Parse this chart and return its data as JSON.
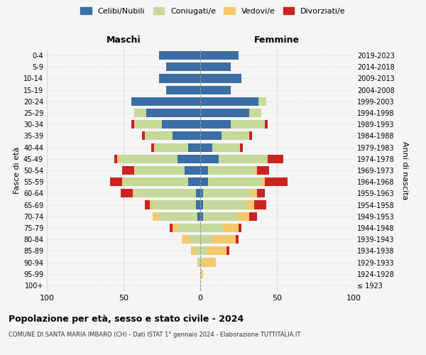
{
  "age_groups": [
    "100+",
    "95-99",
    "90-94",
    "85-89",
    "80-84",
    "75-79",
    "70-74",
    "65-69",
    "60-64",
    "55-59",
    "50-54",
    "45-49",
    "40-44",
    "35-39",
    "30-34",
    "25-29",
    "20-24",
    "15-19",
    "10-14",
    "5-9",
    "0-4"
  ],
  "birth_years": [
    "≤ 1923",
    "1924-1928",
    "1929-1933",
    "1934-1938",
    "1939-1943",
    "1944-1948",
    "1949-1953",
    "1954-1958",
    "1959-1963",
    "1964-1968",
    "1969-1973",
    "1974-1978",
    "1979-1983",
    "1984-1988",
    "1989-1993",
    "1994-1998",
    "1999-2003",
    "2004-2008",
    "2009-2013",
    "2014-2018",
    "2019-2023"
  ],
  "maschi": {
    "celibi": [
      0,
      0,
      0,
      0,
      0,
      0,
      2,
      3,
      3,
      8,
      10,
      15,
      8,
      18,
      25,
      35,
      45,
      22,
      27,
      22,
      27
    ],
    "coniugati": [
      0,
      0,
      1,
      3,
      7,
      15,
      25,
      28,
      40,
      42,
      32,
      38,
      22,
      18,
      18,
      8,
      0,
      0,
      0,
      0,
      0
    ],
    "vedovi": [
      0,
      0,
      1,
      3,
      5,
      3,
      4,
      2,
      1,
      1,
      1,
      1,
      0,
      0,
      0,
      0,
      0,
      0,
      0,
      0,
      0
    ],
    "divorziati": [
      0,
      0,
      0,
      0,
      0,
      2,
      0,
      3,
      8,
      8,
      8,
      2,
      2,
      2,
      2,
      0,
      0,
      0,
      0,
      0,
      0
    ]
  },
  "femmine": {
    "nubili": [
      0,
      0,
      0,
      0,
      0,
      0,
      2,
      2,
      2,
      5,
      5,
      12,
      8,
      14,
      20,
      32,
      38,
      20,
      27,
      20,
      25
    ],
    "coniugate": [
      0,
      0,
      2,
      5,
      8,
      15,
      22,
      28,
      32,
      35,
      30,
      32,
      18,
      18,
      22,
      8,
      5,
      0,
      0,
      0,
      0
    ],
    "vedove": [
      0,
      2,
      8,
      12,
      15,
      10,
      8,
      5,
      3,
      2,
      2,
      0,
      0,
      0,
      0,
      0,
      0,
      0,
      0,
      0,
      0
    ],
    "divorziate": [
      0,
      0,
      0,
      2,
      2,
      2,
      5,
      8,
      5,
      15,
      8,
      10,
      2,
      2,
      2,
      0,
      0,
      0,
      0,
      0,
      0
    ]
  },
  "colors": {
    "celibi_nubili": "#3a6ea5",
    "coniugati": "#c5d99a",
    "vedovi": "#f5c96a",
    "divorziati": "#cc2222"
  },
  "xlim": 100,
  "title": "Popolazione per età, sesso e stato civile - 2024",
  "subtitle": "COMUNE DI SANTA MARIA IMBARO (CH) - Dati ISTAT 1° gennaio 2024 - Elaborazione TUTTITALIA.IT",
  "ylabel_left": "Fasce di età",
  "ylabel_right": "Anni di nascita",
  "label_maschi": "Maschi",
  "label_femmine": "Femmine",
  "legend_labels": [
    "Celibi/Nubili",
    "Coniugati/e",
    "Vedovi/e",
    "Divorziati/e"
  ],
  "bg_color": "#f5f5f5",
  "grid_color": "#cccccc"
}
